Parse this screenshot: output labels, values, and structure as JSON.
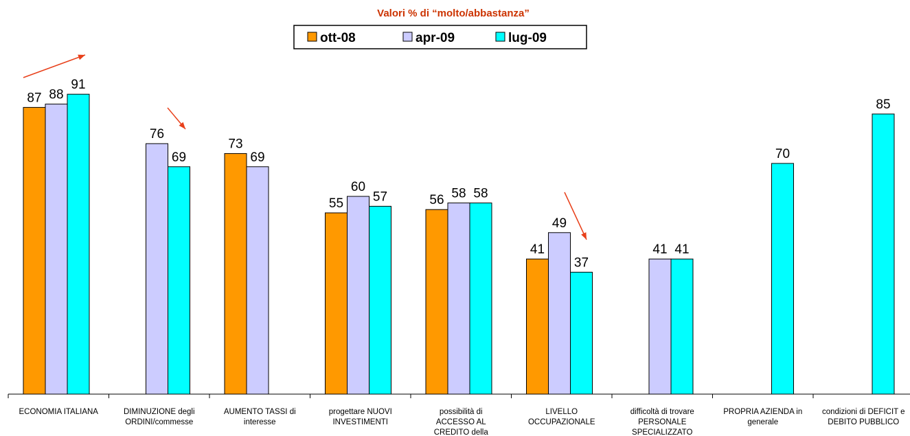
{
  "chart_data": {
    "type": "bar",
    "title": "Valori % di “molto/abbastanza”",
    "title_color": "#cc3300",
    "legend_position": "top-center",
    "grid": false,
    "ylim": [
      0,
      100
    ],
    "categories": [
      [
        "ECONOMIA ITALIANA"
      ],
      [
        "DIMINUZIONE degli",
        "ORDINI/commesse"
      ],
      [
        "AUMENTO TASSI di",
        "interesse"
      ],
      [
        "progettare NUOVI",
        "INVESTIMENTI"
      ],
      [
        "possibilità di",
        "ACCESSO AL",
        "CREDITO della"
      ],
      [
        "LIVELLO",
        "OCCUPAZIONALE"
      ],
      [
        "difficoltà di trovare",
        "PERSONALE",
        "SPECIALIZZATO"
      ],
      [
        "PROPRIA AZIENDA in",
        "generale"
      ],
      [
        "condizioni di DEFICIT e",
        "DEBITO PUBBLICO"
      ]
    ],
    "series": [
      {
        "name": "ott-08",
        "color": "#ff9900",
        "values": [
          87,
          null,
          73,
          55,
          56,
          41,
          null,
          null,
          null
        ]
      },
      {
        "name": "apr-09",
        "color": "#ccccff",
        "values": [
          88,
          76,
          69,
          60,
          58,
          49,
          41,
          null,
          null
        ]
      },
      {
        "name": "lug-09",
        "color": "#00ffff",
        "values": [
          91,
          69,
          null,
          57,
          58,
          37,
          41,
          70,
          85
        ]
      }
    ],
    "trend_arrows": [
      {
        "category_index": 0,
        "direction": "up",
        "color": "#e8401a"
      },
      {
        "category_index": 1,
        "direction": "down",
        "color": "#e8401a"
      },
      {
        "category_index": 5,
        "direction": "down",
        "color": "#e8401a"
      }
    ]
  }
}
